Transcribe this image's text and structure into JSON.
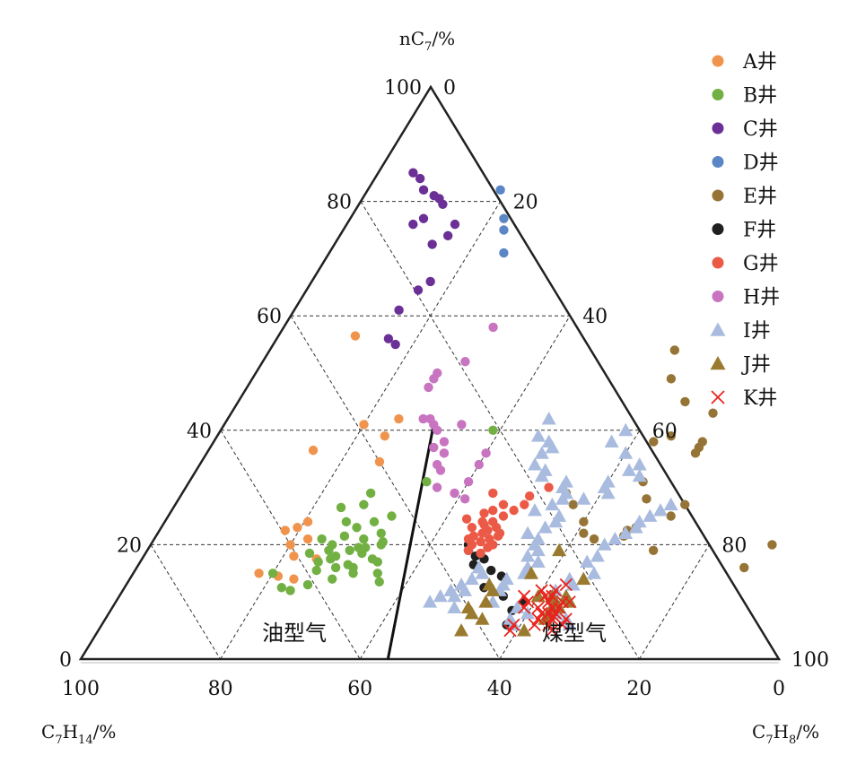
{
  "chart_data": {
    "type": "ternary-scatter",
    "axes": {
      "top": {
        "label": "nC7/%",
        "label_main": "nC",
        "label_sub": "7",
        "label_suffix": "/%"
      },
      "left": {
        "label": "C7H14/%",
        "label_parts": [
          [
            "C",
            ""
          ],
          [
            "7",
            "sub"
          ],
          [
            "H",
            ""
          ],
          [
            "14",
            "sub"
          ],
          [
            "/%",
            ""
          ]
        ]
      },
      "right": {
        "label": "C7H8/%",
        "label_parts": [
          [
            "C",
            ""
          ],
          [
            "7",
            "sub"
          ],
          [
            "H",
            ""
          ],
          [
            "8",
            "sub"
          ],
          [
            "/%",
            ""
          ]
        ]
      }
    },
    "ticks": {
      "left_side": [
        "0",
        "20",
        "40",
        "60",
        "80",
        "100"
      ],
      "right_side": [
        "0",
        "20",
        "40",
        "60",
        "80",
        "100"
      ],
      "bottom": [
        "100",
        "80",
        "60",
        "40",
        "20",
        "0"
      ]
    },
    "grid": true,
    "regions": [
      {
        "label": "油型气"
      },
      {
        "label": "煤型气"
      }
    ],
    "boundary": {
      "from_nC7_C7H8": [
        0,
        44
      ],
      "to_nC7_C7H8": [
        41,
        30
      ]
    },
    "legend_position": "top-right",
    "series": [
      {
        "name": "A井",
        "color": "#f0944d",
        "marker": "circle",
        "points": [
          [
            56.5,
            11
          ],
          [
            42,
            24.5
          ],
          [
            41,
            20
          ],
          [
            39,
            24
          ],
          [
            36.5,
            15
          ],
          [
            34.5,
            25.5
          ],
          [
            22.5,
            18
          ],
          [
            17.5,
            25
          ],
          [
            15,
            18
          ],
          [
            14,
            23.5
          ],
          [
            18,
            21.5
          ],
          [
            14.5,
            21
          ],
          [
            24,
            20.5
          ],
          [
            23,
            19.5
          ],
          [
            21,
            22
          ],
          [
            20,
            20
          ]
        ]
      },
      {
        "name": "B井",
        "color": "#72b043",
        "marker": "circle",
        "points": [
          [
            40,
            39
          ],
          [
            31,
            34
          ],
          [
            29,
            27
          ],
          [
            27,
            27
          ],
          [
            26.5,
            24
          ],
          [
            24,
            26
          ],
          [
            23,
            28
          ],
          [
            21.5,
            27
          ],
          [
            20,
            26
          ],
          [
            21,
            30
          ],
          [
            21,
            24
          ],
          [
            20.5,
            33
          ],
          [
            19.5,
            30
          ],
          [
            19,
            26
          ],
          [
            18.5,
            31
          ],
          [
            18,
            27.5
          ],
          [
            17,
            34
          ],
          [
            17,
            25.5
          ],
          [
            16.5,
            30
          ],
          [
            15,
            20
          ],
          [
            15,
            35
          ],
          [
            14,
            29
          ],
          [
            13,
            26
          ],
          [
            12.5,
            22.5
          ],
          [
            12,
            24
          ],
          [
            19,
            29
          ],
          [
            18.5,
            23.5
          ],
          [
            17.5,
            33
          ],
          [
            16,
            28.5
          ],
          [
            22,
            32
          ],
          [
            24,
            30
          ],
          [
            25,
            32
          ],
          [
            20,
            33
          ],
          [
            19.5,
            31
          ],
          [
            17.5,
            27
          ],
          [
            16,
            31
          ],
          [
            15,
            31.5
          ],
          [
            13.5,
            36
          ],
          [
            15.5,
            26
          ]
        ]
      },
      {
        "name": "C井",
        "color": "#6b3096",
        "marker": "circle",
        "points": [
          [
            85,
            5
          ],
          [
            84,
            6.5
          ],
          [
            82,
            8
          ],
          [
            80.5,
            11
          ],
          [
            81,
            10
          ],
          [
            79.5,
            12
          ],
          [
            77,
            10.5
          ],
          [
            76,
            9.5
          ],
          [
            76,
            15.5
          ],
          [
            74,
            15.5
          ],
          [
            72.5,
            14
          ],
          [
            66,
            17
          ],
          [
            64.5,
            16
          ],
          [
            61,
            15
          ],
          [
            56,
            16
          ],
          [
            55,
            17.5
          ]
        ]
      },
      {
        "name": "D井",
        "color": "#5b86c6",
        "marker": "circle",
        "points": [
          [
            82,
            19
          ],
          [
            77,
            22
          ],
          [
            75,
            23
          ],
          [
            71,
            25
          ]
        ]
      },
      {
        "name": "E井",
        "color": "#967435",
        "marker": "circle",
        "points": [
          [
            20,
            89
          ],
          [
            16,
            87
          ],
          [
            27,
            73
          ],
          [
            25,
            72
          ],
          [
            19,
            72.5
          ],
          [
            23,
            68
          ],
          [
            21.5,
            67
          ],
          [
            22.5,
            67
          ],
          [
            21,
            63
          ],
          [
            36,
            70
          ],
          [
            37,
            70
          ],
          [
            38,
            70
          ],
          [
            39,
            65
          ],
          [
            43,
            69
          ],
          [
            45,
            64
          ],
          [
            49,
            60
          ],
          [
            54,
            58
          ],
          [
            38,
            63
          ],
          [
            31,
            65
          ],
          [
            28,
            67
          ],
          [
            22,
            61
          ],
          [
            24,
            60
          ],
          [
            27,
            57
          ],
          [
            29,
            55
          ]
        ]
      },
      {
        "name": "F井",
        "color": "#202020",
        "marker": "circle",
        "points": [
          [
            6,
            58
          ],
          [
            8.5,
            57.5
          ],
          [
            10,
            58.5
          ],
          [
            11,
            55
          ],
          [
            12.5,
            51.5
          ],
          [
            14.5,
            53
          ],
          [
            15.5,
            51
          ],
          [
            16.5,
            48
          ],
          [
            17.5,
            49
          ],
          [
            18,
            47.5
          ],
          [
            19,
            46
          ],
          [
            20,
            45.5
          ]
        ]
      },
      {
        "name": "G井",
        "color": "#eb5a46",
        "marker": "circle",
        "points": [
          [
            23.5,
            46
          ],
          [
            22,
            46.5
          ],
          [
            21.5,
            45.5
          ],
          [
            21,
            48
          ],
          [
            21,
            45
          ],
          [
            20.5,
            47
          ],
          [
            20,
            46
          ],
          [
            19.5,
            48.5
          ],
          [
            19,
            46
          ],
          [
            24,
            47
          ],
          [
            23,
            48
          ],
          [
            22.5,
            47
          ],
          [
            25,
            48
          ],
          [
            26,
            49
          ],
          [
            27,
            50
          ],
          [
            28.5,
            50
          ],
          [
            29,
            44.5
          ],
          [
            30,
            52
          ],
          [
            24.5,
            43
          ],
          [
            23,
            44.5
          ],
          [
            27,
            47
          ],
          [
            26,
            46
          ],
          [
            22,
            49
          ],
          [
            25.5,
            45
          ],
          [
            20,
            49
          ],
          [
            18.5,
            48
          ],
          [
            21.5,
            49
          ],
          [
            24,
            45.5
          ]
        ]
      },
      {
        "name": "H井",
        "color": "#c874c0",
        "marker": "circle",
        "points": [
          [
            58,
            30
          ],
          [
            52,
            29
          ],
          [
            50,
            26
          ],
          [
            49,
            26
          ],
          [
            47.5,
            26
          ],
          [
            42,
            28
          ],
          [
            42,
            29
          ],
          [
            41,
            30
          ],
          [
            40,
            31
          ],
          [
            38,
            33
          ],
          [
            37,
            32
          ],
          [
            36,
            34
          ],
          [
            34,
            34
          ],
          [
            33,
            35
          ],
          [
            41,
            34
          ],
          [
            36,
            40
          ],
          [
            34,
            40
          ],
          [
            28,
            41
          ],
          [
            30,
            36
          ],
          [
            29,
            39
          ],
          [
            31,
            40
          ]
        ]
      },
      {
        "name": "I井",
        "color": "#a9bcdf",
        "marker": "triangle",
        "points": [
          [
            42,
            46
          ],
          [
            39,
            46
          ],
          [
            38,
            48
          ],
          [
            37,
            49
          ],
          [
            36,
            48
          ],
          [
            34,
            48
          ],
          [
            33,
            50
          ],
          [
            32,
            50
          ],
          [
            31,
            54
          ],
          [
            30,
            54
          ],
          [
            29,
            55
          ],
          [
            28,
            55
          ],
          [
            27,
            54
          ],
          [
            26,
            52
          ],
          [
            25,
            56
          ],
          [
            24,
            56
          ],
          [
            23,
            55
          ],
          [
            22,
            53
          ],
          [
            21,
            55
          ],
          [
            20,
            55
          ],
          [
            19,
            56
          ],
          [
            18,
            55
          ],
          [
            17,
            57
          ],
          [
            16,
            56
          ],
          [
            15,
            56
          ],
          [
            14,
            54
          ],
          [
            13,
            54
          ],
          [
            12,
            54
          ],
          [
            12,
            49
          ],
          [
            11,
            48
          ],
          [
            10,
            54
          ],
          [
            9,
            58
          ],
          [
            8,
            60
          ],
          [
            7,
            58
          ],
          [
            6,
            59
          ],
          [
            16,
            49
          ],
          [
            15,
            50
          ],
          [
            14,
            49
          ],
          [
            13,
            48
          ],
          [
            12,
            47
          ],
          [
            11,
            46
          ],
          [
            10,
            45
          ],
          [
            9,
            49
          ],
          [
            20,
            65
          ],
          [
            21,
            66
          ],
          [
            22,
            67
          ],
          [
            23,
            68
          ],
          [
            24,
            68
          ],
          [
            25,
            69
          ],
          [
            26,
            70
          ],
          [
            27,
            71
          ],
          [
            17,
            64
          ],
          [
            18,
            65
          ],
          [
            15,
            66
          ],
          [
            14,
            63
          ],
          [
            13,
            64
          ],
          [
            12,
            62
          ],
          [
            11,
            64
          ],
          [
            10,
            63
          ],
          [
            9,
            63
          ],
          [
            8,
            64
          ],
          [
            7,
            66
          ],
          [
            6,
            67
          ],
          [
            40,
            58
          ],
          [
            38,
            57
          ],
          [
            36,
            60
          ],
          [
            34,
            63
          ],
          [
            33,
            62
          ],
          [
            32,
            64
          ],
          [
            31,
            60
          ],
          [
            30,
            60
          ],
          [
            29,
            61
          ],
          [
            28,
            58
          ]
        ]
      },
      {
        "name": "J井",
        "color": "#9a7a2e",
        "marker": "triangle",
        "points": [
          [
            5,
            61
          ],
          [
            7,
            63
          ],
          [
            8,
            63
          ],
          [
            9,
            63
          ],
          [
            9,
            64
          ],
          [
            10,
            65
          ],
          [
            11,
            64
          ],
          [
            14,
            65
          ],
          [
            11,
            62
          ],
          [
            5,
            52
          ],
          [
            7,
            54
          ],
          [
            8,
            52
          ],
          [
            9,
            51
          ],
          [
            10,
            53
          ],
          [
            12,
            53
          ],
          [
            13,
            52
          ],
          [
            15,
            57
          ],
          [
            19,
            59
          ],
          [
            11,
            60
          ],
          [
            10,
            63
          ]
        ]
      },
      {
        "name": "K井",
        "color": "#e8241f",
        "marker": "x",
        "points": [
          [
            8,
            63
          ],
          [
            9,
            63
          ],
          [
            7.5,
            64
          ],
          [
            10,
            62
          ],
          [
            10,
            64
          ],
          [
            11,
            61
          ],
          [
            11,
            62
          ],
          [
            12,
            60
          ],
          [
            12,
            62
          ],
          [
            9,
            61
          ],
          [
            8,
            62
          ],
          [
            7,
            62
          ],
          [
            6,
            62
          ],
          [
            9,
            59
          ],
          [
            10,
            59
          ],
          [
            11,
            58
          ],
          [
            6,
            59
          ],
          [
            5,
            59
          ],
          [
            6,
            64
          ],
          [
            7,
            64
          ],
          [
            8,
            64
          ],
          [
            9,
            64
          ],
          [
            7,
            66
          ],
          [
            6,
            66
          ],
          [
            5,
            65
          ],
          [
            10,
            65
          ],
          [
            13,
            63
          ]
        ]
      }
    ]
  }
}
